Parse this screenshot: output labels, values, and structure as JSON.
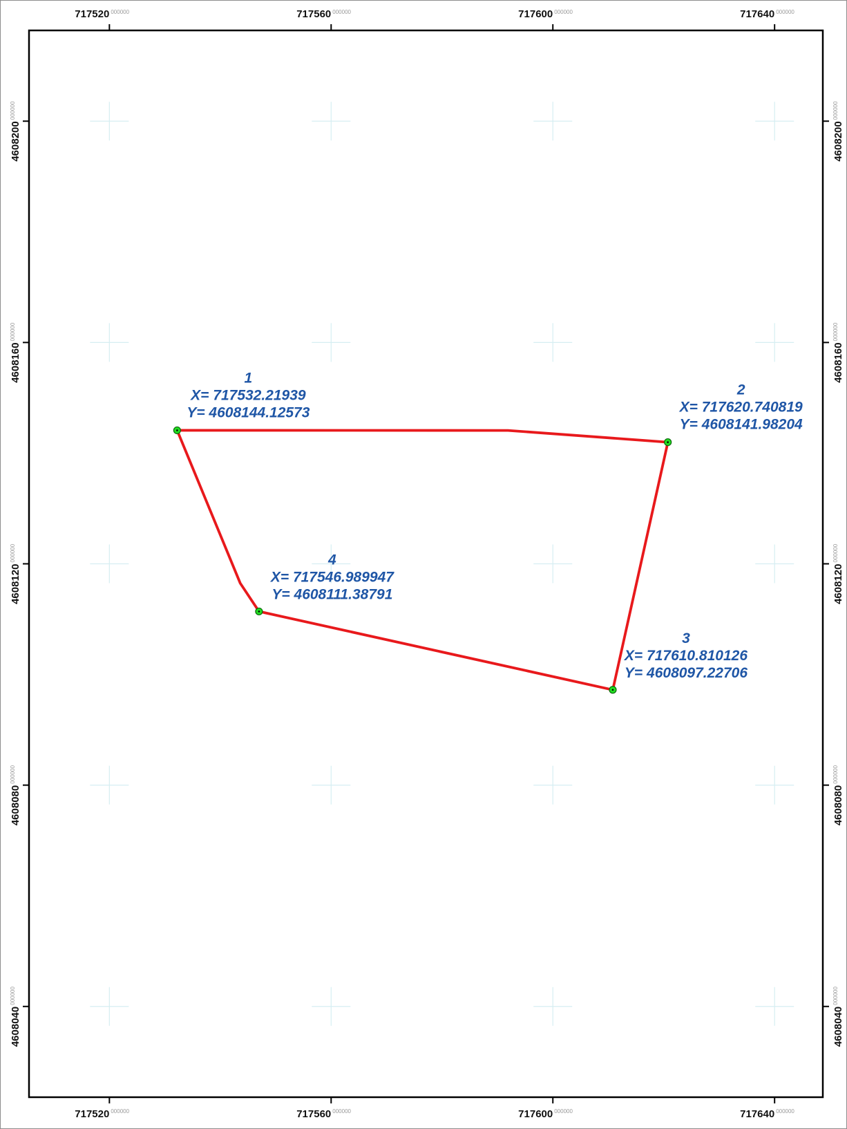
{
  "map": {
    "x_range": [
      717505.5,
      717648.7
    ],
    "y_range": [
      4608023.6,
      4608216.4
    ],
    "x_ticks": [
      {
        "value": 717520,
        "label": "717520",
        "sub": "000000"
      },
      {
        "value": 717560,
        "label": "717560",
        "sub": "000000"
      },
      {
        "value": 717600,
        "label": "717600",
        "sub": "000000"
      },
      {
        "value": 717640,
        "label": "717640",
        "sub": "000000"
      }
    ],
    "y_ticks": [
      {
        "value": 4608200,
        "label": "4608200",
        "sub": "000000"
      },
      {
        "value": 4608160,
        "label": "4608160",
        "sub": "000000"
      },
      {
        "value": 4608120,
        "label": "4608120",
        "sub": "000000"
      },
      {
        "value": 4608080,
        "label": "4608080",
        "sub": "000000"
      },
      {
        "value": 4608040,
        "label": "4608040",
        "sub": "000000"
      }
    ],
    "polygon_path": [
      [
        717532.21939,
        4608144.12573
      ],
      [
        717591.9,
        4608144.1
      ],
      [
        717620.740819,
        4608141.98204
      ],
      [
        717610.810126,
        4608097.22706
      ],
      [
        717546.989947,
        4608111.38791
      ],
      [
        717543.6,
        4608116.5
      ],
      [
        717532.21939,
        4608144.12573
      ]
    ],
    "points": [
      {
        "id": "1",
        "x": 717532.21939,
        "y": 4608144.12573,
        "x_label": "X= 717532.21939",
        "y_label": "Y= 4608144.12573",
        "anchor": "above"
      },
      {
        "id": "2",
        "x": 717620.740819,
        "y": 4608141.98204,
        "x_label": "X= 717620.740819",
        "y_label": "Y= 4608141.98204",
        "anchor": "above"
      },
      {
        "id": "3",
        "x": 717610.810126,
        "y": 4608097.22706,
        "x_label": "X= 717610.810126",
        "y_label": "Y= 4608097.22706",
        "anchor": "above-right"
      },
      {
        "id": "4",
        "x": 717546.989947,
        "y": 4608111.38791,
        "x_label": "X= 717546.989947",
        "y_label": "Y= 4608111.38791",
        "anchor": "above-right"
      }
    ],
    "colors": {
      "polygon": "#e8191c",
      "vertex_fill": "#22dd22",
      "vertex_stroke": "#0a6a0a",
      "label": "#1f56a6",
      "grid_cross": "#d6eef2",
      "frame": "#000000"
    }
  }
}
